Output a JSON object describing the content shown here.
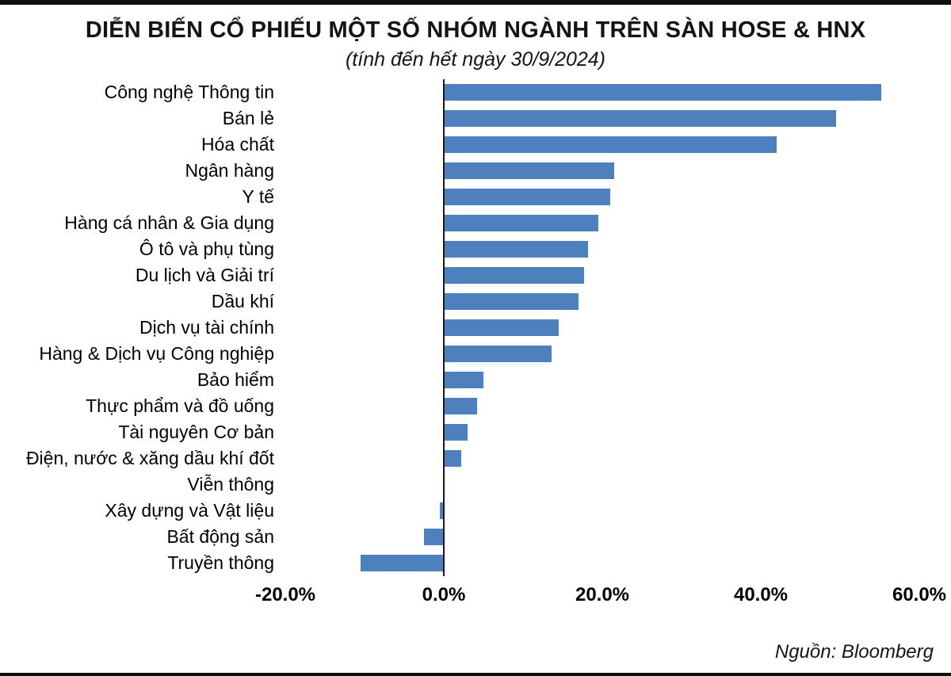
{
  "header": {
    "title": "DIỄN BIẾN CỔ PHIẾU MỘT SỐ NHÓM NGÀNH TRÊN SÀN HOSE & HNX",
    "subtitle": "(tính đến hết ngày 30/9/2024)"
  },
  "footer": {
    "source": "Nguồn: Bloomberg"
  },
  "chart_data": {
    "type": "bar",
    "orientation": "horizontal",
    "title": "DIỄN BIẾN CỔ PHIẾU MỘT SỐ NHÓM NGÀNH TRÊN SÀN HOSE & HNX",
    "subtitle": "(tính đến hết ngày 30/9/2024)",
    "source": "Nguồn: Bloomberg",
    "bar_color": "#4d80bc",
    "grid": false,
    "xlim": [
      -20,
      60
    ],
    "xlabel": "",
    "ylabel": "",
    "unit": "%",
    "categories": [
      "Công nghệ Thông tin",
      "Bán lẻ",
      "Hóa chất",
      "Ngân hàng",
      "Y tế",
      "Hàng cá nhân & Gia dụng",
      "Ô tô và phụ tùng",
      "Du lịch và Giải trí",
      "Dầu khí",
      "Dịch vụ tài chính",
      "Hàng & Dịch vụ Công nghiệp",
      "Bảo hiểm",
      "Thực phẩm và đồ uống",
      "Tài nguyên Cơ bản",
      "Điện, nước & xăng dầu khí đốt",
      "Viễn thông",
      "Xây dựng và Vật liệu",
      "Bất động sản",
      "Truyền thông"
    ],
    "values": [
      55.2,
      49.5,
      42.0,
      21.5,
      21.0,
      19.5,
      18.2,
      17.7,
      17.0,
      14.5,
      13.6,
      5.0,
      4.2,
      3.0,
      2.2,
      0.0,
      -0.5,
      -2.5,
      -10.5
    ],
    "x_ticks": [
      {
        "value": -20,
        "label": "-20.0%"
      },
      {
        "value": 0,
        "label": "0.0%"
      },
      {
        "value": 20,
        "label": "20.0%"
      },
      {
        "value": 40,
        "label": "40.0%"
      },
      {
        "value": 60,
        "label": "60.0%"
      }
    ]
  }
}
